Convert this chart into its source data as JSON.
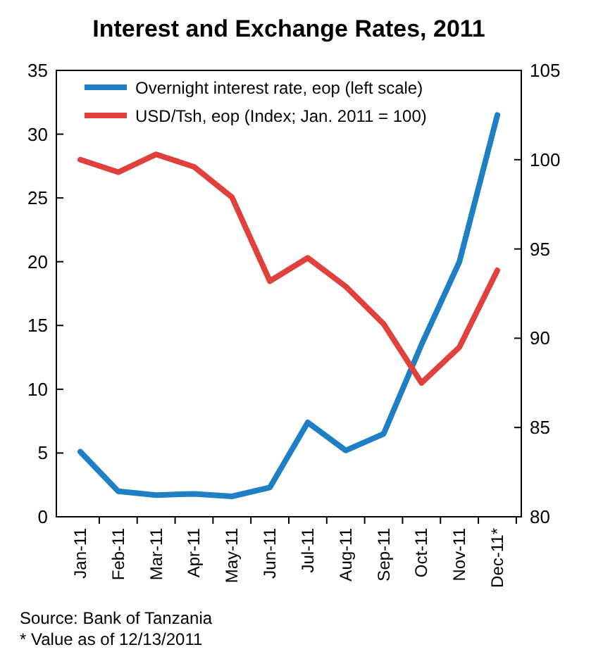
{
  "chart_data": {
    "type": "line",
    "title": "Interest and Exchange Rates, 2011",
    "categories": [
      "Jan-11",
      "Feb-11",
      "Mar-11",
      "Apr-11",
      "May-11",
      "Jun-11",
      "Jul-11",
      "Aug-11",
      "Sep-11",
      "Oct-11",
      "Nov-11",
      "Dec-11*"
    ],
    "series": [
      {
        "name": "Overnight interest rate, eop (left scale)",
        "color": "#1f7fc4",
        "values": [
          5.1,
          2.0,
          1.7,
          1.8,
          1.6,
          2.3,
          7.4,
          5.2,
          6.5,
          13.5,
          20.0,
          31.5
        ]
      },
      {
        "name": "USD/Tsh, eop (Index; Jan. 2011 = 100)",
        "color": "#e0413d",
        "axis": "y2",
        "values": [
          100,
          99.3,
          100.3,
          99.6,
          97.9,
          93.2,
          94.5,
          92.9,
          90.8,
          87.5,
          89.5,
          93.8
        ]
      }
    ],
    "ylim": [
      0,
      35
    ],
    "yticks": [
      0,
      5,
      10,
      15,
      20,
      25,
      30,
      35
    ],
    "y2lim": [
      80,
      105
    ],
    "y2ticks": [
      80,
      85,
      90,
      95,
      100,
      105
    ],
    "legend": "top left",
    "grid": false,
    "marker": "none",
    "line_style": "solid",
    "annotations": [
      "Source: Bank of Tanzania",
      "* Value as of 12/13/2011"
    ]
  }
}
